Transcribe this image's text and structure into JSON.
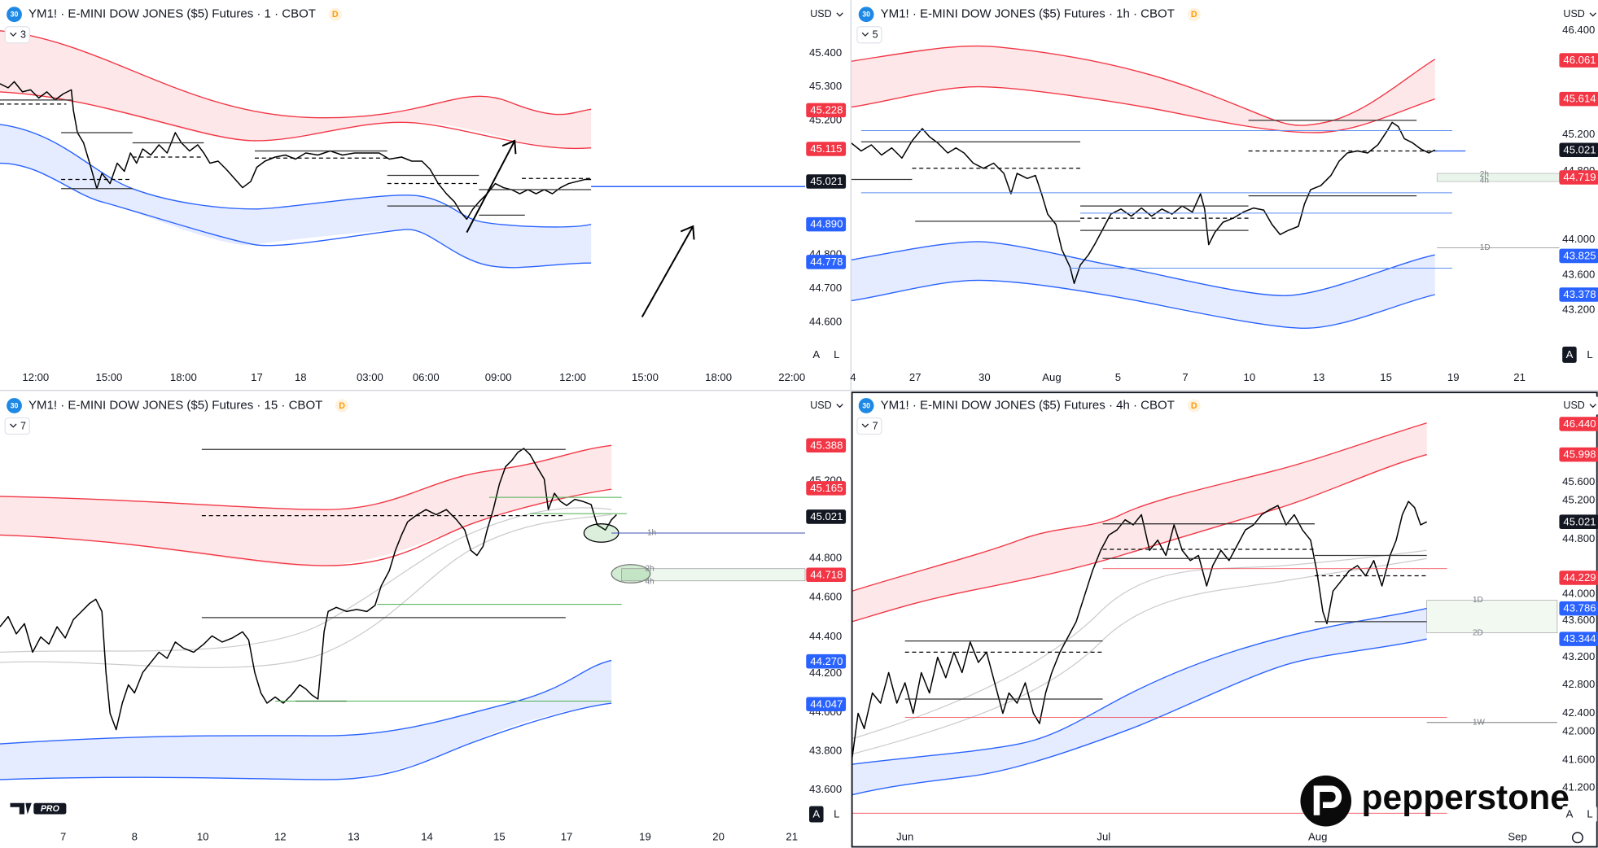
{
  "panels": [
    {
      "icon": "30",
      "title": "YM1! · E-MINI DOW JONES ($5) Futures · 1 · CBOT",
      "flag": "D",
      "badge": "3",
      "currency": "USD",
      "y_labels": [
        "45.400",
        "45.300",
        "45.200",
        "44.800",
        "44.700",
        "44.600"
      ],
      "price_badges": [
        {
          "label": "45.228",
          "color": "#f23645"
        },
        {
          "label": "45.115",
          "color": "#f23645"
        },
        {
          "label": "45.021",
          "color": "#131722"
        },
        {
          "label": "44.890",
          "color": "#2962ff"
        },
        {
          "label": "44.778",
          "color": "#2962ff"
        }
      ],
      "x_labels": [
        "12:00",
        "15:00",
        "18:00",
        "17",
        "18",
        "03:00",
        "06:00",
        "09:00",
        "12:00",
        "15:00",
        "18:00",
        "22:00"
      ],
      "markers": [],
      "scale_buttons": [
        "A",
        "L"
      ]
    },
    {
      "icon": "30",
      "title": "YM1! · E-MINI DOW JONES ($5) Futures · 1h · CBOT",
      "flag": "D",
      "badge": "5",
      "currency": "USD",
      "y_labels": [
        "46.400",
        "45.200",
        "44.800",
        "44.000",
        "43.600",
        "43.200"
      ],
      "price_badges": [
        {
          "label": "46.061",
          "color": "#f23645"
        },
        {
          "label": "45.614",
          "color": "#f23645"
        },
        {
          "label": "45.021",
          "color": "#131722"
        },
        {
          "label": "44.719",
          "color": "#f23645"
        },
        {
          "label": "43.825",
          "color": "#2962ff"
        },
        {
          "label": "43.378",
          "color": "#2962ff"
        }
      ],
      "x_labels": [
        "4",
        "27",
        "30",
        "Aug",
        "5",
        "7",
        "10",
        "13",
        "15",
        "19",
        "21"
      ],
      "markers": [
        "2h",
        "4h",
        "1D"
      ],
      "scale_buttons": [
        "A",
        "L"
      ]
    },
    {
      "icon": "30",
      "title": "YM1! · E-MINI DOW JONES ($5) Futures · 15 · CBOT",
      "flag": "D",
      "badge": "7",
      "currency": "USD",
      "y_labels": [
        "45.200",
        "44.800",
        "44.600",
        "44.400",
        "44.200",
        "44.000",
        "43.800",
        "43.600"
      ],
      "price_badges": [
        {
          "label": "45.388",
          "color": "#f23645"
        },
        {
          "label": "45.165",
          "color": "#f23645"
        },
        {
          "label": "45.021",
          "color": "#131722"
        },
        {
          "label": "44.718",
          "color": "#f23645"
        },
        {
          "label": "44.270",
          "color": "#2962ff"
        },
        {
          "label": "44.047",
          "color": "#2962ff"
        }
      ],
      "x_labels": [
        "7",
        "8",
        "10",
        "12",
        "13",
        "14",
        "15",
        "17",
        "19",
        "20",
        "21"
      ],
      "markers": [
        "1h",
        "2h",
        "4h"
      ],
      "scale_buttons": [
        "A",
        "L"
      ]
    },
    {
      "icon": "30",
      "title": "YM1! · E-MINI DOW JONES ($5) Futures · 4h · CBOT",
      "flag": "D",
      "badge": "7",
      "currency": "USD",
      "y_labels": [
        "45.600",
        "45.200",
        "44.800",
        "44.000",
        "43.600",
        "43.200",
        "42.800",
        "42.400",
        "42.000",
        "41.600",
        "41.200"
      ],
      "price_badges": [
        {
          "label": "46.440",
          "color": "#f23645"
        },
        {
          "label": "45.998",
          "color": "#f23645"
        },
        {
          "label": "45.021",
          "color": "#131722"
        },
        {
          "label": "44.229",
          "color": "#f23645"
        },
        {
          "label": "43.786",
          "color": "#2962ff"
        },
        {
          "label": "43.344",
          "color": "#2962ff"
        }
      ],
      "x_labels": [
        "Jun",
        "Jul",
        "Aug",
        "Sep"
      ],
      "markers": [
        "1D",
        "2D",
        "1W"
      ],
      "scale_buttons": [
        "A",
        "L"
      ]
    }
  ],
  "watermarks": {
    "tv": "PRO",
    "brand": "pepperstone"
  }
}
